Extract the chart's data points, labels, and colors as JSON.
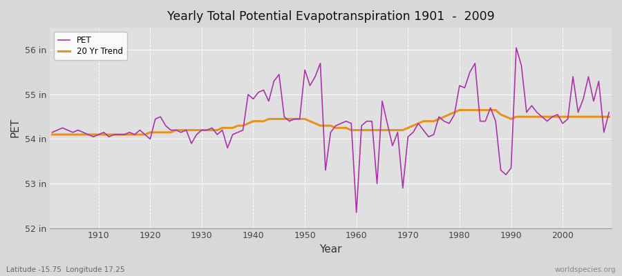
{
  "title": "Yearly Total Potential Evapotranspiration 1901  -  2009",
  "xlabel": "Year",
  "ylabel": "PET",
  "subtitle_left": "Latitude -15.75  Longitude 17.25",
  "subtitle_right": "worldspecies.org",
  "ylim": [
    52,
    56.5
  ],
  "yticks": [
    52,
    53,
    54,
    55,
    56
  ],
  "ytick_labels": [
    "52 in",
    "53 in",
    "54 in",
    "55 in",
    "56 in"
  ],
  "xticks": [
    1910,
    1920,
    1930,
    1940,
    1950,
    1960,
    1970,
    1980,
    1990,
    2000
  ],
  "bg_color": "#d8d8d8",
  "plot_bg_color": "#e0e0e0",
  "pet_color": "#aa33aa",
  "trend_color": "#e8921e",
  "pet_linewidth": 1.2,
  "trend_linewidth": 2.2,
  "years": [
    1901,
    1902,
    1903,
    1904,
    1905,
    1906,
    1907,
    1908,
    1909,
    1910,
    1911,
    1912,
    1913,
    1914,
    1915,
    1916,
    1917,
    1918,
    1919,
    1920,
    1921,
    1922,
    1923,
    1924,
    1925,
    1926,
    1927,
    1928,
    1929,
    1930,
    1931,
    1932,
    1933,
    1934,
    1935,
    1936,
    1937,
    1938,
    1939,
    1940,
    1941,
    1942,
    1943,
    1944,
    1945,
    1946,
    1947,
    1948,
    1949,
    1950,
    1951,
    1952,
    1953,
    1954,
    1955,
    1956,
    1957,
    1958,
    1959,
    1960,
    1961,
    1962,
    1963,
    1964,
    1965,
    1966,
    1967,
    1968,
    1969,
    1970,
    1971,
    1972,
    1973,
    1974,
    1975,
    1976,
    1977,
    1978,
    1979,
    1980,
    1981,
    1982,
    1983,
    1984,
    1985,
    1986,
    1987,
    1988,
    1989,
    1990,
    1991,
    1992,
    1993,
    1994,
    1995,
    1996,
    1997,
    1998,
    1999,
    2000,
    2001,
    2002,
    2003,
    2004,
    2005,
    2006,
    2007,
    2008,
    2009
  ],
  "pet": [
    54.15,
    54.2,
    54.25,
    54.2,
    54.15,
    54.2,
    54.15,
    54.1,
    54.05,
    54.1,
    54.15,
    54.05,
    54.1,
    54.1,
    54.1,
    54.15,
    54.1,
    54.2,
    54.1,
    54.0,
    54.45,
    54.5,
    54.3,
    54.2,
    54.2,
    54.15,
    54.2,
    53.9,
    54.1,
    54.2,
    54.2,
    54.25,
    54.1,
    54.2,
    53.8,
    54.1,
    54.15,
    54.2,
    55.0,
    54.9,
    55.05,
    55.1,
    54.85,
    55.3,
    55.45,
    54.5,
    54.4,
    54.45,
    54.45,
    55.55,
    55.2,
    55.4,
    55.7,
    53.3,
    54.15,
    54.3,
    54.35,
    54.4,
    54.35,
    52.35,
    54.3,
    54.4,
    54.4,
    53.0,
    54.85,
    54.35,
    53.85,
    54.15,
    52.9,
    54.05,
    54.15,
    54.35,
    54.2,
    54.05,
    54.1,
    54.5,
    54.4,
    54.35,
    54.55,
    55.2,
    55.15,
    55.5,
    55.7,
    54.4,
    54.4,
    54.7,
    54.4,
    53.3,
    53.2,
    53.35,
    56.05,
    55.65,
    54.6,
    54.75,
    54.6,
    54.5,
    54.4,
    54.5,
    54.55,
    54.35,
    54.45,
    55.4,
    54.6,
    54.9,
    55.4,
    54.85,
    55.3,
    54.15,
    54.6
  ],
  "trend": [
    54.1,
    54.1,
    54.1,
    54.1,
    54.1,
    54.1,
    54.1,
    54.1,
    54.1,
    54.1,
    54.1,
    54.1,
    54.1,
    54.1,
    54.1,
    54.1,
    54.1,
    54.1,
    54.1,
    54.15,
    54.15,
    54.15,
    54.15,
    54.15,
    54.2,
    54.2,
    54.2,
    54.2,
    54.2,
    54.2,
    54.2,
    54.2,
    54.2,
    54.25,
    54.25,
    54.25,
    54.3,
    54.3,
    54.35,
    54.4,
    54.4,
    54.4,
    54.45,
    54.45,
    54.45,
    54.45,
    54.45,
    54.45,
    54.45,
    54.45,
    54.4,
    54.35,
    54.3,
    54.3,
    54.3,
    54.25,
    54.25,
    54.25,
    54.2,
    54.2,
    54.2,
    54.2,
    54.2,
    54.2,
    54.2,
    54.2,
    54.2,
    54.2,
    54.2,
    54.25,
    54.3,
    54.35,
    54.4,
    54.4,
    54.4,
    54.45,
    54.5,
    54.55,
    54.6,
    54.65,
    54.65,
    54.65,
    54.65,
    54.65,
    54.65,
    54.65,
    54.65,
    54.55,
    54.5,
    54.45,
    54.5,
    54.5,
    54.5,
    54.5,
    54.5,
    54.5,
    54.5,
    54.5,
    54.5,
    54.5,
    54.5,
    54.5,
    54.5,
    54.5,
    54.5,
    54.5,
    54.5,
    54.5,
    54.5
  ]
}
